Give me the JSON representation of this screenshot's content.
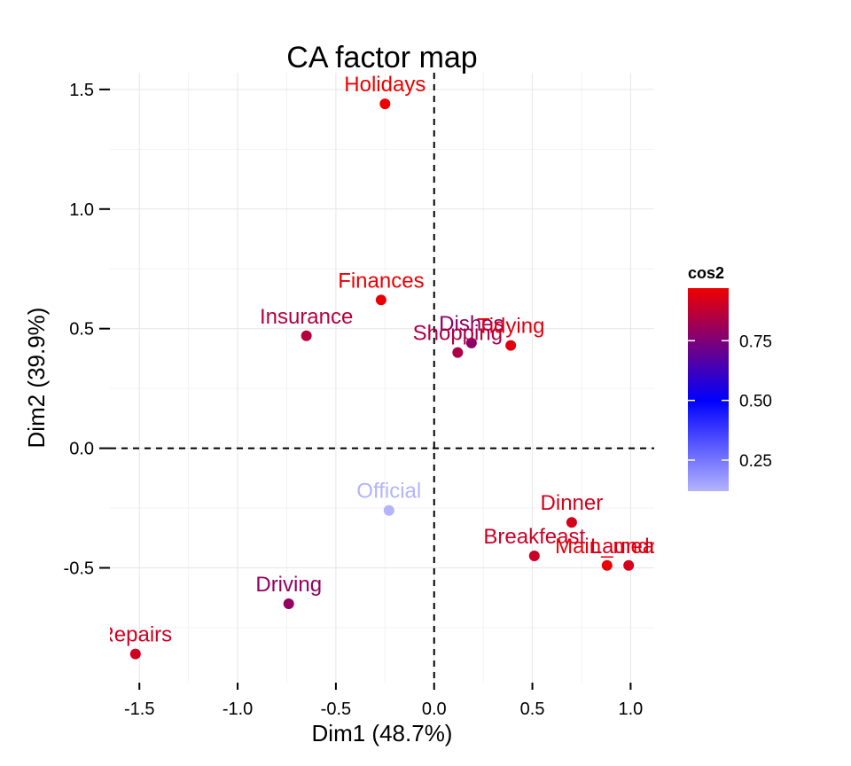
{
  "chart_data": {
    "type": "scatter",
    "title": "CA factor map",
    "xlabel": "Dim1 (48.7%)",
    "ylabel": "Dim2 (39.9%)",
    "xlim": [
      -1.65,
      1.12
    ],
    "ylim": [
      -0.98,
      1.57
    ],
    "xticks": [
      -1.5,
      -1.0,
      -0.5,
      0.0,
      0.5,
      1.0
    ],
    "xtick_labels": [
      "-1.5",
      "-1.0",
      "-0.5",
      "0.0",
      "0.5",
      "1.0"
    ],
    "yticks": [
      -0.5,
      0.0,
      0.5,
      1.0,
      1.5
    ],
    "ytick_labels": [
      "-0.5",
      "0.0",
      "0.5",
      "1.0",
      "1.5"
    ],
    "grid": true,
    "reference_lines": {
      "x": 0,
      "y": 0,
      "style": "dashed"
    },
    "color_variable": "cos2",
    "color_scale": {
      "title": "cos2",
      "stops": [
        {
          "value": 0.12,
          "color": "#b3b3ff"
        },
        {
          "value": 0.5,
          "color": "#0000ff"
        },
        {
          "value": 0.97,
          "color": "#ee0000"
        }
      ],
      "ticks": [
        0.25,
        0.5,
        0.75
      ],
      "tick_labels": [
        "0.25",
        "0.50",
        "0.75"
      ]
    },
    "legend_position": "right",
    "points": [
      {
        "label": "Holidays",
        "x": -0.25,
        "y": 1.44,
        "cos2": 0.97
      },
      {
        "label": "Finances",
        "x": -0.27,
        "y": 0.62,
        "cos2": 0.96
      },
      {
        "label": "Insurance",
        "x": -0.65,
        "y": 0.47,
        "cos2": 0.86
      },
      {
        "label": "Dishes",
        "x": 0.19,
        "y": 0.44,
        "cos2": 0.78
      },
      {
        "label": "Shopping",
        "x": 0.12,
        "y": 0.4,
        "cos2": 0.84
      },
      {
        "label": "Tidying",
        "x": 0.39,
        "y": 0.43,
        "cos2": 0.94
      },
      {
        "label": "Official",
        "x": -0.23,
        "y": -0.26,
        "cos2": 0.12
      },
      {
        "label": "Dinner",
        "x": 0.7,
        "y": -0.31,
        "cos2": 0.92
      },
      {
        "label": "Breakfeast",
        "x": 0.51,
        "y": -0.45,
        "cos2": 0.9
      },
      {
        "label": "Main_meal",
        "x": 0.88,
        "y": -0.49,
        "cos2": 0.96
      },
      {
        "label": "Laundry",
        "x": 0.99,
        "y": -0.49,
        "cos2": 0.92
      },
      {
        "label": "Driving",
        "x": -0.74,
        "y": -0.65,
        "cos2": 0.79
      },
      {
        "label": "Repairs",
        "x": -1.52,
        "y": -0.86,
        "cos2": 0.91
      }
    ]
  }
}
